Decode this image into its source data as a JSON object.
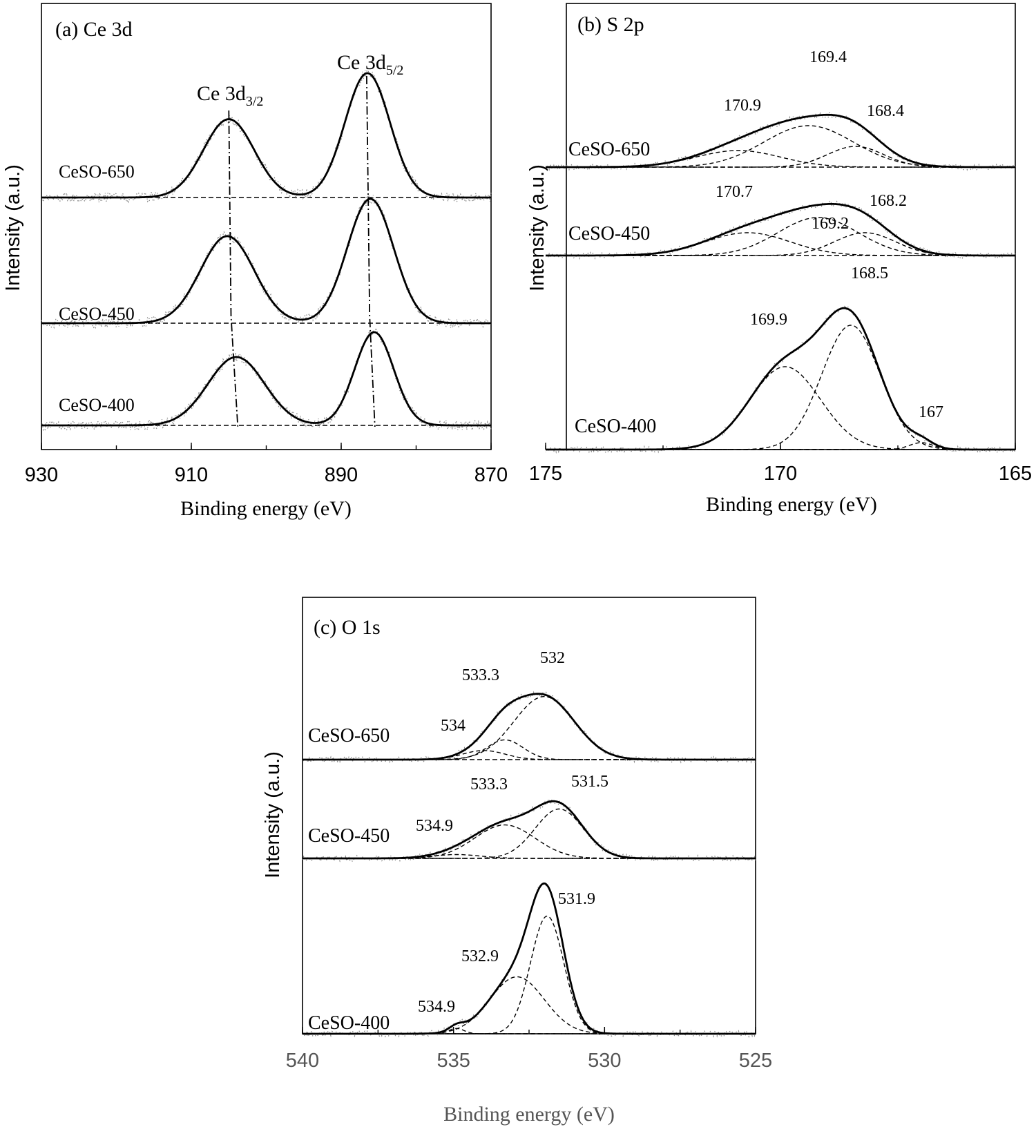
{
  "chart_data": [
    {
      "type": "line",
      "panel": "a",
      "title": "(a) Ce 3d",
      "xlabel": "Binding energy (eV)",
      "ylabel": "Intensity (a.u.)",
      "xlim": [
        930,
        870
      ],
      "xticks": [
        "930",
        "910",
        "890",
        "870"
      ],
      "xtick_values": [
        930,
        910,
        890,
        870
      ],
      "peak_labels": [
        {
          "main": "Ce 3d",
          "sub": "3/2",
          "x": 905
        },
        {
          "main": "Ce 3d",
          "sub": "5/2",
          "x": 886
        }
      ],
      "guides": [
        {
          "points": [
            [
              905.0,
              3.1
            ],
            [
              904.7,
              2.0
            ],
            [
              903.8,
              0.0
            ]
          ]
        },
        {
          "points": [
            [
              886.6,
              3.45
            ],
            [
              886.2,
              2.0
            ],
            [
              885.5,
              0.0
            ]
          ]
        }
      ],
      "series": [
        {
          "name": "CeSO-650",
          "offset": 2.05,
          "peaks": [
            [
              905.0,
              0.63,
              3.4
            ],
            [
              886.5,
              1.0,
              3.0
            ]
          ]
        },
        {
          "name": "CeSO-450",
          "offset": 1.0,
          "peaks": [
            [
              905.2,
              0.7,
              3.6
            ],
            [
              886.1,
              1.0,
              3.1
            ]
          ]
        },
        {
          "name": "CeSO-400",
          "offset": 0.0,
          "peaks": [
            [
              904.0,
              0.55,
              3.8
            ],
            [
              885.6,
              0.75,
              2.6
            ]
          ]
        }
      ]
    },
    {
      "type": "line",
      "panel": "b",
      "title": "(b) S 2p",
      "xlabel": "Binding energy (eV)",
      "ylabel": "Intensity (a.u.)",
      "xlim": [
        175,
        165
      ],
      "xticks": [
        "175",
        "170",
        "165"
      ],
      "xtick_values": [
        175,
        170,
        165
      ],
      "series": [
        {
          "name": "CeSO-650",
          "offset": 2.05,
          "components": [
            {
              "center": 170.9,
              "label": "170.9",
              "height": 0.24,
              "width": 0.9
            },
            {
              "center": 169.4,
              "label": "169.4",
              "height": 0.6,
              "width": 0.95
            },
            {
              "center": 168.4,
              "label": "168.4",
              "height": 0.3,
              "width": 0.6
            }
          ]
        },
        {
          "name": "CeSO-450",
          "offset": 1.1,
          "components": [
            {
              "center": 170.7,
              "label": "170.7",
              "height": 0.33,
              "width": 0.9
            },
            {
              "center": 169.2,
              "label": "169.2",
              "height": 0.55,
              "width": 0.85
            },
            {
              "center": 168.2,
              "label": "168.2",
              "height": 0.33,
              "width": 0.65
            }
          ]
        },
        {
          "name": "CeSO-400",
          "offset": 0.0,
          "components": [
            {
              "center": 169.9,
              "label": "169.9",
              "height": 1.2,
              "width": 0.75
            },
            {
              "center": 168.5,
              "label": "168.5",
              "height": 1.8,
              "width": 0.62
            },
            {
              "center": 167.0,
              "label": "167",
              "height": 0.1,
              "width": 0.25
            }
          ]
        }
      ]
    },
    {
      "type": "line",
      "panel": "c",
      "title": "(c) O 1s",
      "xlabel": "Binding energy (eV)",
      "ylabel": "Intensity (a.u.)",
      "xlim": [
        540,
        525
      ],
      "xticks": [
        "540",
        "535",
        "530",
        "525"
      ],
      "xtick_values": [
        540,
        535,
        530,
        525
      ],
      "series": [
        {
          "name": "CeSO-650",
          "offset": 2.1,
          "components": [
            {
              "center": 534.0,
              "label": "534",
              "height": 0.12,
              "width": 0.7
            },
            {
              "center": 533.3,
              "label": "533.3",
              "height": 0.26,
              "width": 0.6
            },
            {
              "center": 532.0,
              "label": "532",
              "height": 0.83,
              "width": 1.0
            }
          ]
        },
        {
          "name": "CeSO-450",
          "offset": 1.15,
          "components": [
            {
              "center": 534.9,
              "label": "534.9",
              "height": 0.05,
              "width": 0.8
            },
            {
              "center": 533.3,
              "label": "533.3",
              "height": 0.44,
              "width": 1.0
            },
            {
              "center": 531.5,
              "label": "531.5",
              "height": 0.65,
              "width": 0.8
            }
          ]
        },
        {
          "name": "CeSO-400",
          "offset": 0.0,
          "components": [
            {
              "center": 534.9,
              "label": "534.9",
              "height": 0.07,
              "width": 0.25
            },
            {
              "center": 532.9,
              "label": "532.9",
              "height": 0.75,
              "width": 0.9
            },
            {
              "center": 531.9,
              "label": "531.9",
              "height": 1.55,
              "width": 0.55
            }
          ]
        }
      ]
    }
  ]
}
